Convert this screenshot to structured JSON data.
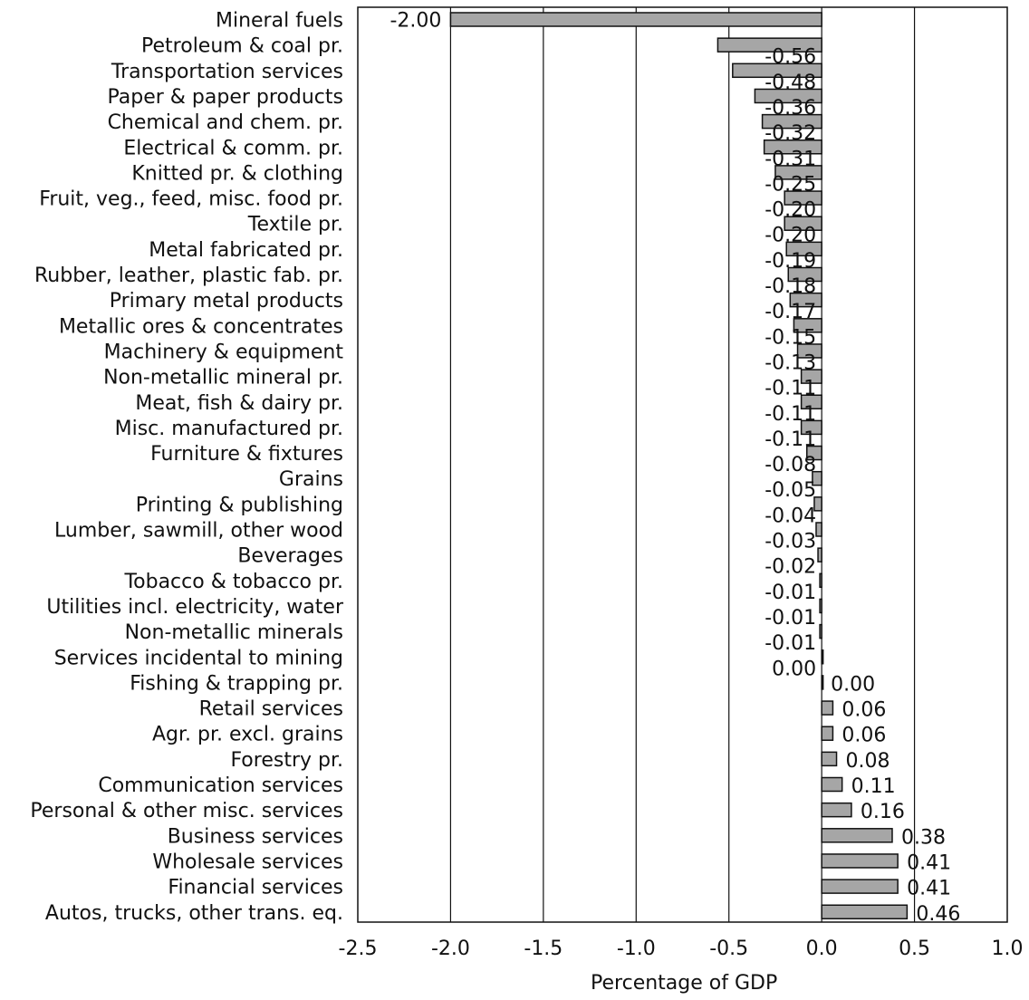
{
  "chart_data": {
    "type": "bar",
    "orientation": "horizontal",
    "categories": [
      "Mineral fuels",
      "Petroleum & coal pr.",
      "Transportation services",
      "Paper & paper products",
      "Chemical and chem. pr.",
      "Electrical & comm. pr.",
      "Knitted pr. & clothing",
      "Fruit, veg., feed, misc. food pr.",
      "Textile pr.",
      "Metal fabricated pr.",
      "Rubber, leather, plastic fab. pr.",
      "Primary metal products",
      "Metallic ores & concentrates",
      "Machinery & equipment",
      "Non-metallic mineral pr.",
      "Meat, fish & dairy pr.",
      "Misc. manufactured pr.",
      "Furniture & fixtures",
      "Grains",
      "Printing & publishing",
      "Lumber, sawmill, other wood",
      "Beverages",
      "Tobacco & tobacco pr.",
      "Utilities incl. electricity, water",
      "Non-metallic minerals",
      "Services incidental to mining",
      "Fishing & trapping pr.",
      "Retail services",
      "Agr. pr. excl. grains",
      "Forestry pr.",
      "Communication services",
      "Personal & other misc. services",
      "Business services",
      "Wholesale services",
      "Financial services",
      "Autos, trucks, other trans. eq."
    ],
    "values": [
      -2.0,
      -0.56,
      -0.48,
      -0.36,
      -0.32,
      -0.31,
      -0.25,
      -0.2,
      -0.2,
      -0.19,
      -0.18,
      -0.17,
      -0.15,
      -0.13,
      -0.11,
      -0.11,
      -0.11,
      -0.08,
      -0.05,
      -0.04,
      -0.03,
      -0.02,
      -0.01,
      -0.01,
      -0.01,
      0.0,
      0.0,
      0.06,
      0.06,
      0.08,
      0.11,
      0.16,
      0.38,
      0.41,
      0.41,
      0.46
    ],
    "value_labels": [
      "-2.00",
      "-0.56",
      "-0.48",
      "-0.36",
      "-0.32",
      "-0.31",
      "-0.25",
      "-0.20",
      "-0.20",
      "-0.19",
      "-0.18",
      "-0.17",
      "-0.15",
      "-0.13",
      "-0.11",
      "-0.11",
      "-0.11",
      "-0.08",
      "-0.05",
      "-0.04",
      "-0.03",
      "-0.02",
      "-0.01",
      "-0.01",
      "-0.01",
      "0.00",
      "0.00",
      "0.06",
      "0.06",
      "0.08",
      "0.11",
      "0.16",
      "0.38",
      "0.41",
      "0.41",
      "0.46"
    ],
    "xlabel": "Percentage of GDP",
    "ylabel": "",
    "title": "",
    "xlim": [
      -2.5,
      1.0
    ],
    "xticks": [
      -2.5,
      -2.0,
      -1.5,
      -1.0,
      -0.5,
      0.0,
      0.5,
      1.0
    ],
    "xtick_labels": [
      "-2.5",
      "-2.0",
      "-1.5",
      "-1.0",
      "-0.5",
      "0.0",
      "0.5",
      "1.0"
    ],
    "grid": "vertical",
    "bar_color": "#a6a6a6",
    "edge_color": "#111111"
  }
}
